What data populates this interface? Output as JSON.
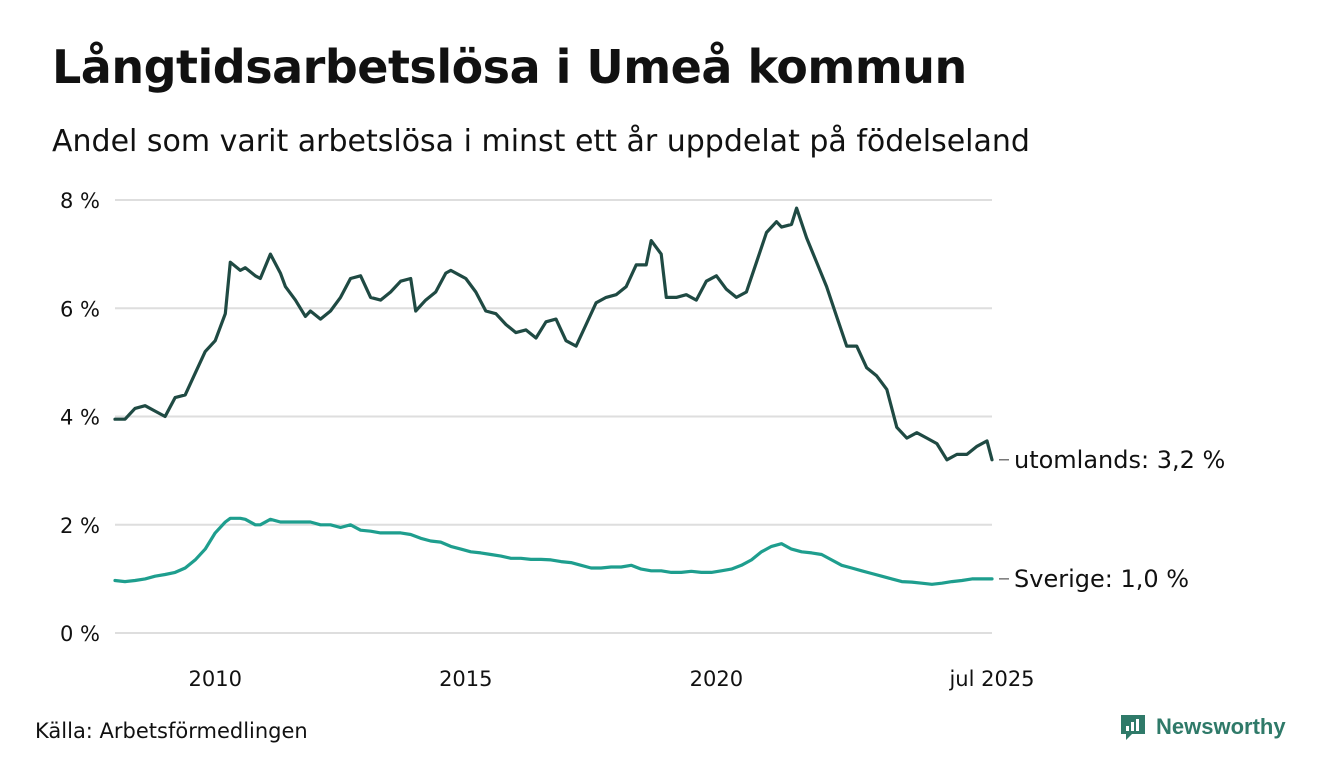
{
  "title": "Långtidsarbetslösa i Umeå kommun",
  "subtitle": "Andel som varit arbetslösa i minst ett år uppdelat på födelseland",
  "source": "Källa: Arbetsförmedlingen",
  "brand": {
    "name": "Newsworthy",
    "icon": "newsworthy-logo-icon",
    "color": "#2f7a69"
  },
  "chart_data": {
    "type": "line",
    "title": "Långtidsarbetslösa i Umeå kommun",
    "subtitle": "Andel som varit arbetslösa i minst ett år uppdelat på födelseland",
    "ylim": [
      0,
      8
    ],
    "xlim": [
      2008.0,
      2025.5
    ],
    "y_ticks": [
      {
        "value": 0,
        "label": "0 %"
      },
      {
        "value": 2,
        "label": "2 %"
      },
      {
        "value": 4,
        "label": "4 %"
      },
      {
        "value": 6,
        "label": "6 %"
      },
      {
        "value": 8,
        "label": "8 %"
      }
    ],
    "x_ticks": [
      {
        "value": 2010,
        "label": "2010"
      },
      {
        "value": 2015,
        "label": "2015"
      },
      {
        "value": 2020,
        "label": "2020"
      },
      {
        "value": 2025.5,
        "label": "jul 2025"
      }
    ],
    "grid": true,
    "legend": "end-labels",
    "series": [
      {
        "name": "utomlands",
        "end_label": "utomlands: 3,2 %",
        "color": "#1f4a43",
        "x": [
          2008.0,
          2008.2,
          2008.4,
          2008.6,
          2008.8,
          2009.0,
          2009.2,
          2009.4,
          2009.6,
          2009.8,
          2010.0,
          2010.2,
          2010.3,
          2010.5,
          2010.6,
          2010.8,
          2010.9,
          2011.1,
          2011.3,
          2011.4,
          2011.6,
          2011.8,
          2011.9,
          2012.1,
          2012.3,
          2012.5,
          2012.7,
          2012.9,
          2013.1,
          2013.3,
          2013.5,
          2013.7,
          2013.9,
          2014.0,
          2014.2,
          2014.4,
          2014.6,
          2014.7,
          2014.9,
          2015.0,
          2015.2,
          2015.4,
          2015.6,
          2015.8,
          2016.0,
          2016.2,
          2016.4,
          2016.6,
          2016.8,
          2017.0,
          2017.2,
          2017.4,
          2017.6,
          2017.8,
          2018.0,
          2018.2,
          2018.4,
          2018.6,
          2018.7,
          2018.9,
          2019.0,
          2019.2,
          2019.4,
          2019.6,
          2019.8,
          2020.0,
          2020.2,
          2020.4,
          2020.6,
          2020.8,
          2021.0,
          2021.2,
          2021.3,
          2021.5,
          2021.6,
          2021.8,
          2022.0,
          2022.2,
          2022.4,
          2022.6,
          2022.8,
          2023.0,
          2023.2,
          2023.4,
          2023.6,
          2023.8,
          2024.0,
          2024.2,
          2024.4,
          2024.6,
          2024.8,
          2025.0,
          2025.2,
          2025.4,
          2025.5
        ],
        "values": [
          3.95,
          3.95,
          4.15,
          4.2,
          4.1,
          4.0,
          4.35,
          4.4,
          4.8,
          5.2,
          5.4,
          5.9,
          6.85,
          6.7,
          6.75,
          6.6,
          6.55,
          7.0,
          6.65,
          6.4,
          6.15,
          5.85,
          5.95,
          5.8,
          5.95,
          6.2,
          6.55,
          6.6,
          6.2,
          6.15,
          6.3,
          6.5,
          6.55,
          5.95,
          6.15,
          6.3,
          6.65,
          6.7,
          6.6,
          6.55,
          6.3,
          5.95,
          5.9,
          5.7,
          5.55,
          5.6,
          5.45,
          5.75,
          5.8,
          5.4,
          5.3,
          5.7,
          6.1,
          6.2,
          6.25,
          6.4,
          6.8,
          6.8,
          7.25,
          7.0,
          6.2,
          6.2,
          6.25,
          6.15,
          6.5,
          6.6,
          6.35,
          6.2,
          6.3,
          6.85,
          7.4,
          7.6,
          7.5,
          7.55,
          7.85,
          7.3,
          6.85,
          6.4,
          5.85,
          5.3,
          5.3,
          4.9,
          4.75,
          4.5,
          3.8,
          3.6,
          3.7,
          3.6,
          3.5,
          3.2,
          3.3,
          3.3,
          3.45,
          3.55,
          3.2
        ]
      },
      {
        "name": "Sverige",
        "end_label": "Sverige: 1,0 %",
        "color": "#1e9e8e",
        "x": [
          2008.0,
          2008.2,
          2008.4,
          2008.6,
          2008.8,
          2009.0,
          2009.2,
          2009.4,
          2009.6,
          2009.8,
          2010.0,
          2010.2,
          2010.3,
          2010.5,
          2010.6,
          2010.8,
          2010.9,
          2011.1,
          2011.3,
          2011.5,
          2011.7,
          2011.9,
          2012.1,
          2012.3,
          2012.5,
          2012.7,
          2012.9,
          2013.1,
          2013.3,
          2013.5,
          2013.7,
          2013.9,
          2014.1,
          2014.3,
          2014.5,
          2014.7,
          2014.9,
          2015.1,
          2015.3,
          2015.5,
          2015.7,
          2015.9,
          2016.1,
          2016.3,
          2016.5,
          2016.7,
          2016.9,
          2017.1,
          2017.3,
          2017.5,
          2017.7,
          2017.9,
          2018.1,
          2018.3,
          2018.5,
          2018.7,
          2018.9,
          2019.1,
          2019.3,
          2019.5,
          2019.7,
          2019.9,
          2020.1,
          2020.3,
          2020.5,
          2020.7,
          2020.9,
          2021.1,
          2021.3,
          2021.5,
          2021.7,
          2021.9,
          2022.1,
          2022.3,
          2022.5,
          2022.7,
          2022.9,
          2023.1,
          2023.3,
          2023.5,
          2023.7,
          2023.9,
          2024.1,
          2024.3,
          2024.5,
          2024.7,
          2024.9,
          2025.1,
          2025.3,
          2025.5
        ],
        "values": [
          0.97,
          0.95,
          0.97,
          1.0,
          1.05,
          1.08,
          1.12,
          1.2,
          1.35,
          1.55,
          1.85,
          2.05,
          2.12,
          2.12,
          2.1,
          2.0,
          2.0,
          2.1,
          2.05,
          2.05,
          2.05,
          2.05,
          2.0,
          2.0,
          1.95,
          2.0,
          1.9,
          1.88,
          1.85,
          1.85,
          1.85,
          1.82,
          1.75,
          1.7,
          1.68,
          1.6,
          1.55,
          1.5,
          1.48,
          1.45,
          1.42,
          1.38,
          1.38,
          1.36,
          1.36,
          1.35,
          1.32,
          1.3,
          1.25,
          1.2,
          1.2,
          1.22,
          1.22,
          1.25,
          1.18,
          1.15,
          1.15,
          1.12,
          1.12,
          1.14,
          1.12,
          1.12,
          1.15,
          1.18,
          1.25,
          1.35,
          1.5,
          1.6,
          1.65,
          1.55,
          1.5,
          1.48,
          1.45,
          1.35,
          1.25,
          1.2,
          1.15,
          1.1,
          1.05,
          1.0,
          0.95,
          0.94,
          0.92,
          0.9,
          0.92,
          0.95,
          0.97,
          1.0,
          1.0,
          1.0
        ]
      }
    ]
  }
}
